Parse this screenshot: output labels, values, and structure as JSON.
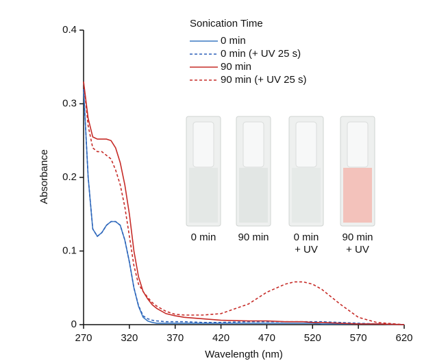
{
  "chart_data": {
    "type": "line",
    "xlabel": "Wavelength (nm)",
    "ylabel": "Absorbance",
    "legend_title": "Sonication Time",
    "legend_position": "top-right",
    "xlim": [
      270,
      620
    ],
    "ylim": [
      0,
      0.4
    ],
    "xticks": [
      270,
      320,
      370,
      420,
      470,
      520,
      570,
      620
    ],
    "yticks": [
      0,
      0.1,
      0.2,
      0.3,
      0.4
    ],
    "x": [
      270,
      275,
      280,
      285,
      290,
      295,
      300,
      305,
      310,
      315,
      320,
      325,
      330,
      335,
      340,
      345,
      350,
      360,
      370,
      380,
      400,
      420,
      450,
      470,
      490,
      500,
      510,
      520,
      530,
      550,
      570,
      590,
      620
    ],
    "series": [
      {
        "name": "0 min",
        "color": "#3a78c2",
        "dash": false,
        "values": [
          0.32,
          0.2,
          0.13,
          0.12,
          0.125,
          0.135,
          0.14,
          0.14,
          0.135,
          0.115,
          0.085,
          0.05,
          0.025,
          0.01,
          0.005,
          0.003,
          0.002,
          0.002,
          0.002,
          0.002,
          0.002,
          0.002,
          0.002,
          0.002,
          0.002,
          0.002,
          0.002,
          0.002,
          0.001,
          0.001,
          0.001,
          0.001,
          0
        ]
      },
      {
        "name": "0 min (+ UV 25 s)",
        "color": "#2a5fb8",
        "dash": true,
        "values": [
          0.32,
          0.2,
          0.13,
          0.12,
          0.125,
          0.135,
          0.14,
          0.14,
          0.135,
          0.115,
          0.085,
          0.05,
          0.026,
          0.012,
          0.008,
          0.006,
          0.005,
          0.004,
          0.004,
          0.004,
          0.003,
          0.003,
          0.004,
          0.004,
          0.004,
          0.004,
          0.004,
          0.004,
          0.004,
          0.003,
          0.002,
          0.001,
          0
        ]
      },
      {
        "name": "90 min",
        "color": "#c62b27",
        "dash": false,
        "values": [
          0.33,
          0.28,
          0.255,
          0.252,
          0.252,
          0.252,
          0.25,
          0.24,
          0.22,
          0.19,
          0.15,
          0.1,
          0.065,
          0.045,
          0.035,
          0.027,
          0.022,
          0.015,
          0.012,
          0.01,
          0.008,
          0.006,
          0.005,
          0.005,
          0.004,
          0.004,
          0.004,
          0.003,
          0.003,
          0.002,
          0.001,
          0.001,
          0
        ]
      },
      {
        "name": "90 min (+ UV 25 s)",
        "color": "#c62b27",
        "dash": true,
        "values": [
          0.33,
          0.27,
          0.24,
          0.235,
          0.235,
          0.23,
          0.225,
          0.21,
          0.19,
          0.16,
          0.12,
          0.08,
          0.055,
          0.045,
          0.037,
          0.03,
          0.025,
          0.018,
          0.014,
          0.013,
          0.013,
          0.015,
          0.028,
          0.044,
          0.055,
          0.058,
          0.058,
          0.055,
          0.048,
          0.028,
          0.01,
          0.003,
          0
        ]
      }
    ],
    "inset": {
      "labels": [
        [
          "0 min"
        ],
        [
          "90 min"
        ],
        [
          "0 min",
          "+ UV"
        ],
        [
          "90 min",
          "+ UV"
        ]
      ],
      "colors": [
        "#e4e8e6",
        "#e2e6e4",
        "#e6eae8",
        "#f3c2bb"
      ]
    }
  }
}
